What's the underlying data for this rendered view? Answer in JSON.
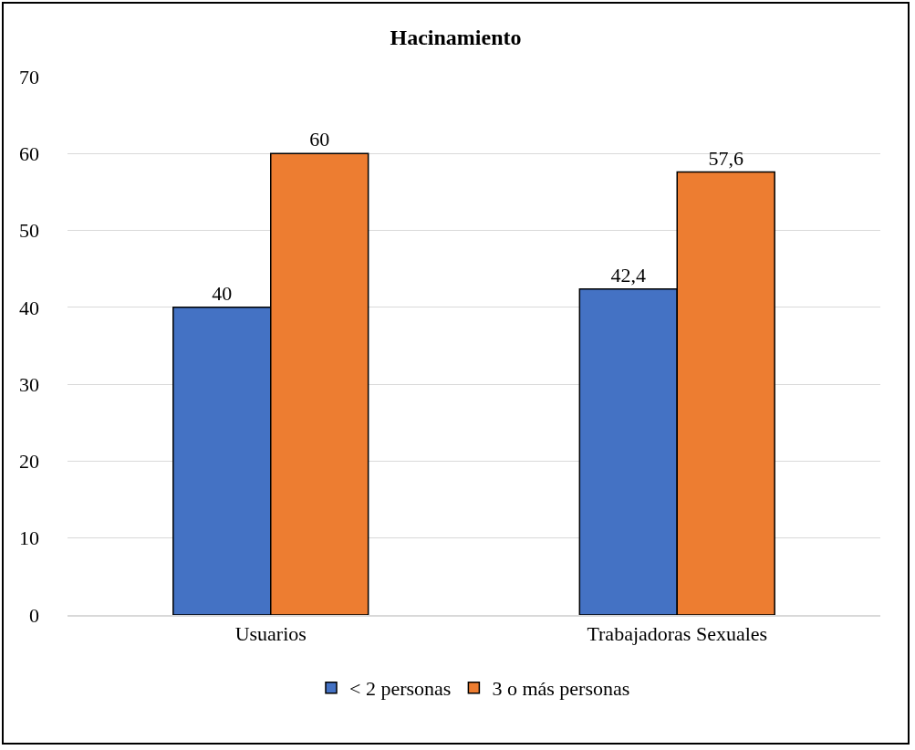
{
  "chart_data": {
    "type": "bar",
    "title": "Hacinamiento",
    "categories": [
      "Usuarios",
      "Trabajadoras Sexuales"
    ],
    "series": [
      {
        "name": "< 2 personas",
        "color": "#4472c4",
        "values": [
          40,
          42.4
        ],
        "value_labels": [
          "40",
          "42,4"
        ]
      },
      {
        "name": "3 o más personas",
        "color": "#ed7d31",
        "values": [
          60,
          57.6
        ],
        "value_labels": [
          "60",
          "57,6"
        ]
      }
    ],
    "ylim": [
      0,
      70
    ],
    "yticks": [
      0,
      10,
      20,
      30,
      40,
      50,
      60,
      70
    ],
    "grid": "y",
    "legend": "bottom"
  }
}
